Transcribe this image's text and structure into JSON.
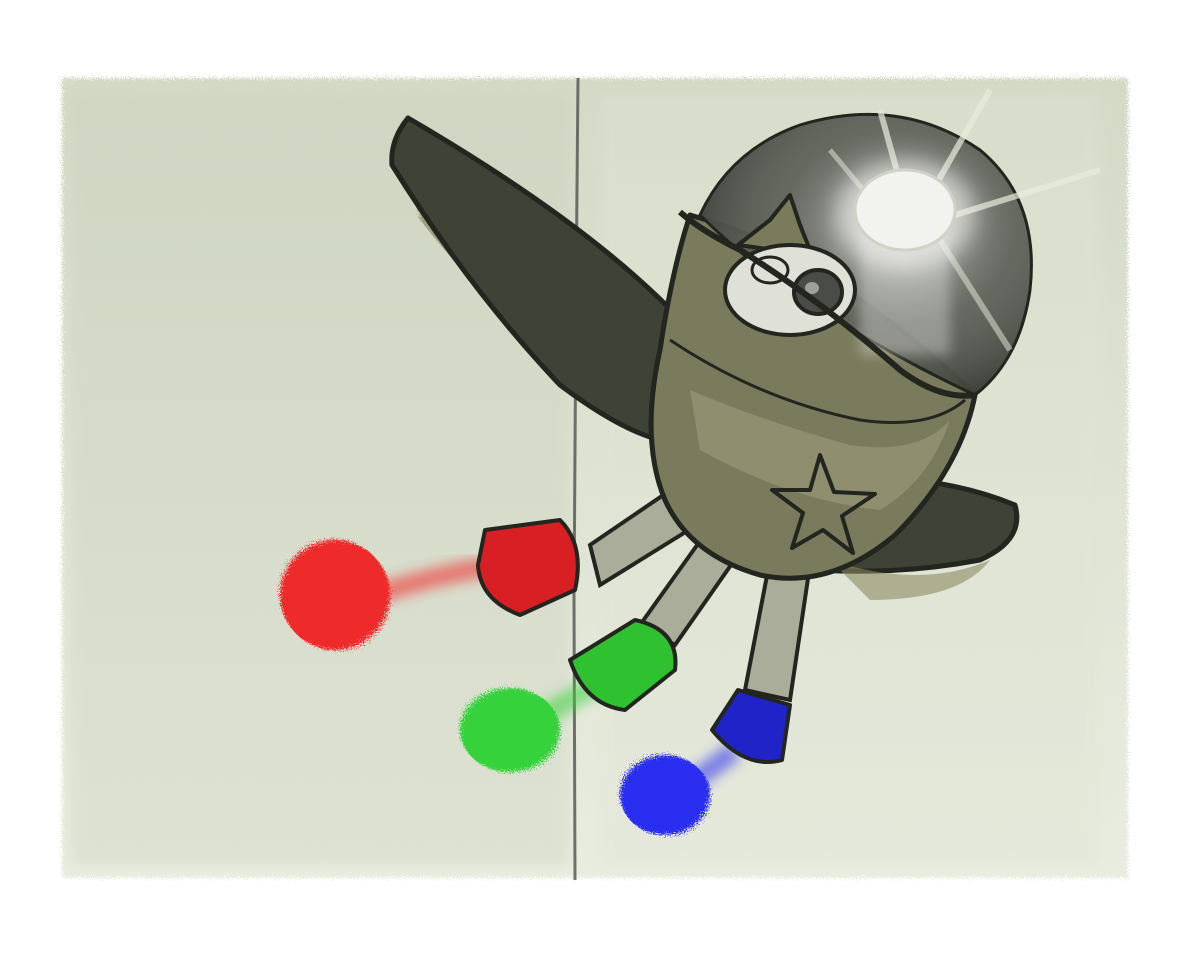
{
  "colors": {
    "background": "#ffffff",
    "paper_light": "#e9ede0",
    "paper_mid": "#d4d9c6",
    "fold_line": "#4f534c",
    "body_olive": "#7a7a5c",
    "body_olive_light": "#9d9c7c",
    "wing_dark": "#3f4237",
    "wing_shadow": "#8c8a63",
    "outline": "#23251f",
    "dome_dark": "#2d302a",
    "dome_glass": "#bfc4b8",
    "light_glow": "#f2f3ee",
    "eye_white": "#dfe0d8",
    "eye_pupil": "#4a4c47",
    "leg_gray": "#a9ad99",
    "red_cap": "#d81f24",
    "red_ball": "#ef2c2c",
    "green_cap": "#2fc12f",
    "green_ball": "#34d23a",
    "blue_cap": "#2024c8",
    "blue_ball": "#2a2ff0"
  },
  "icons": {
    "hull_emblem": "star"
  },
  "thrusters": [
    {
      "name": "red",
      "cap_color_key": "red_cap",
      "ball_color_key": "red_ball"
    },
    {
      "name": "green",
      "cap_color_key": "green_cap",
      "ball_color_key": "green_ball"
    },
    {
      "name": "blue",
      "cap_color_key": "blue_cap",
      "ball_color_key": "blue_ball"
    }
  ]
}
